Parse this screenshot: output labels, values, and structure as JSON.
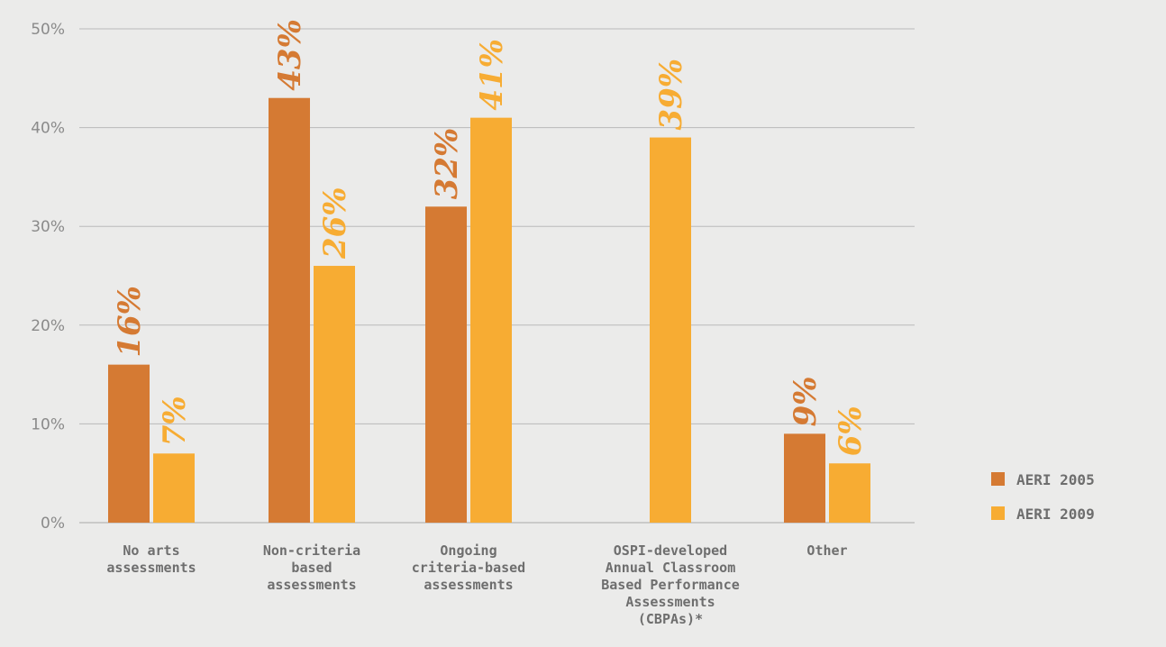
{
  "chart_data": {
    "type": "bar",
    "categories": [
      [
        "No arts",
        "assessments"
      ],
      [
        "Non-criteria",
        "based",
        "assessments"
      ],
      [
        "Ongoing",
        "criteria-based",
        "assessments"
      ],
      [
        "OSPI-developed",
        "Annual Classroom",
        "Based Performance",
        "Assessments",
        "(CBPAs)*"
      ],
      [
        "Other"
      ]
    ],
    "series": [
      {
        "name": "AERI 2005",
        "color": "#d57a33",
        "values": [
          16,
          43,
          32,
          null,
          9
        ],
        "labels": [
          "16%",
          "43%",
          "32%",
          "",
          "9%"
        ]
      },
      {
        "name": "AERI 2009",
        "color": "#f7ac33",
        "values": [
          7,
          26,
          41,
          39,
          6
        ],
        "labels": [
          "7%",
          "26%",
          "41%",
          "39%",
          "6%"
        ]
      }
    ],
    "yticks": [
      "0%",
      "10%",
      "20%",
      "30%",
      "40%",
      "50%"
    ],
    "ylim": [
      0,
      50
    ],
    "grid": true,
    "legend_position": "bottom-right"
  }
}
